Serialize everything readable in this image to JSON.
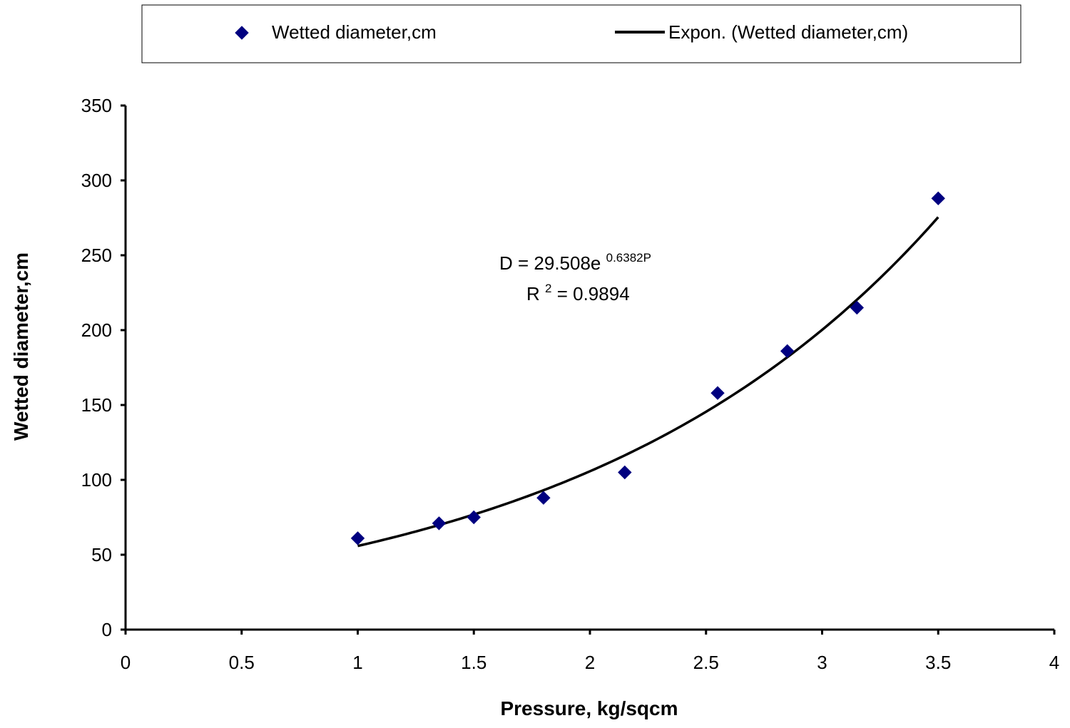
{
  "chart_data": {
    "type": "scatter",
    "title": "",
    "xlabel": "Pressure, kg/sqcm",
    "ylabel": "Wetted diameter,cm",
    "xlim": [
      0,
      4
    ],
    "ylim": [
      0,
      350
    ],
    "x_ticks": [
      0,
      0.5,
      1,
      1.5,
      2,
      2.5,
      3,
      3.5,
      4
    ],
    "x_tick_labels": [
      "0",
      "0.5",
      "1",
      "1.5",
      "2",
      "2.5",
      "3",
      "3.5",
      "4"
    ],
    "y_ticks": [
      0,
      50,
      100,
      150,
      200,
      250,
      300,
      350
    ],
    "y_tick_labels": [
      "0",
      "50",
      "100",
      "150",
      "200",
      "250",
      "300",
      "350"
    ],
    "grid": false,
    "legend_position": "top",
    "series": [
      {
        "name": "Wetted diameter,cm",
        "kind": "scatter",
        "marker": "diamond",
        "color": "#000080",
        "x": [
          1,
          1.35,
          1.5,
          1.8,
          2.15,
          2.55,
          2.85,
          3.15,
          3.5
        ],
        "y": [
          61,
          71,
          75,
          88,
          105,
          158,
          186,
          215,
          288
        ]
      },
      {
        "name": "Expon. (Wetted diameter,cm)",
        "kind": "trendline",
        "model": "exponential",
        "coefficient": 29.508,
        "rate": 0.6382,
        "x_range": [
          1,
          3.5
        ],
        "color": "#000000"
      }
    ],
    "annotation": {
      "equation_prefix": "D = 29.508e",
      "equation_exponent": "0.6382P",
      "r2_prefix": "R",
      "r2_superscript": "2",
      "r2_suffix": " = 0.9894"
    }
  }
}
